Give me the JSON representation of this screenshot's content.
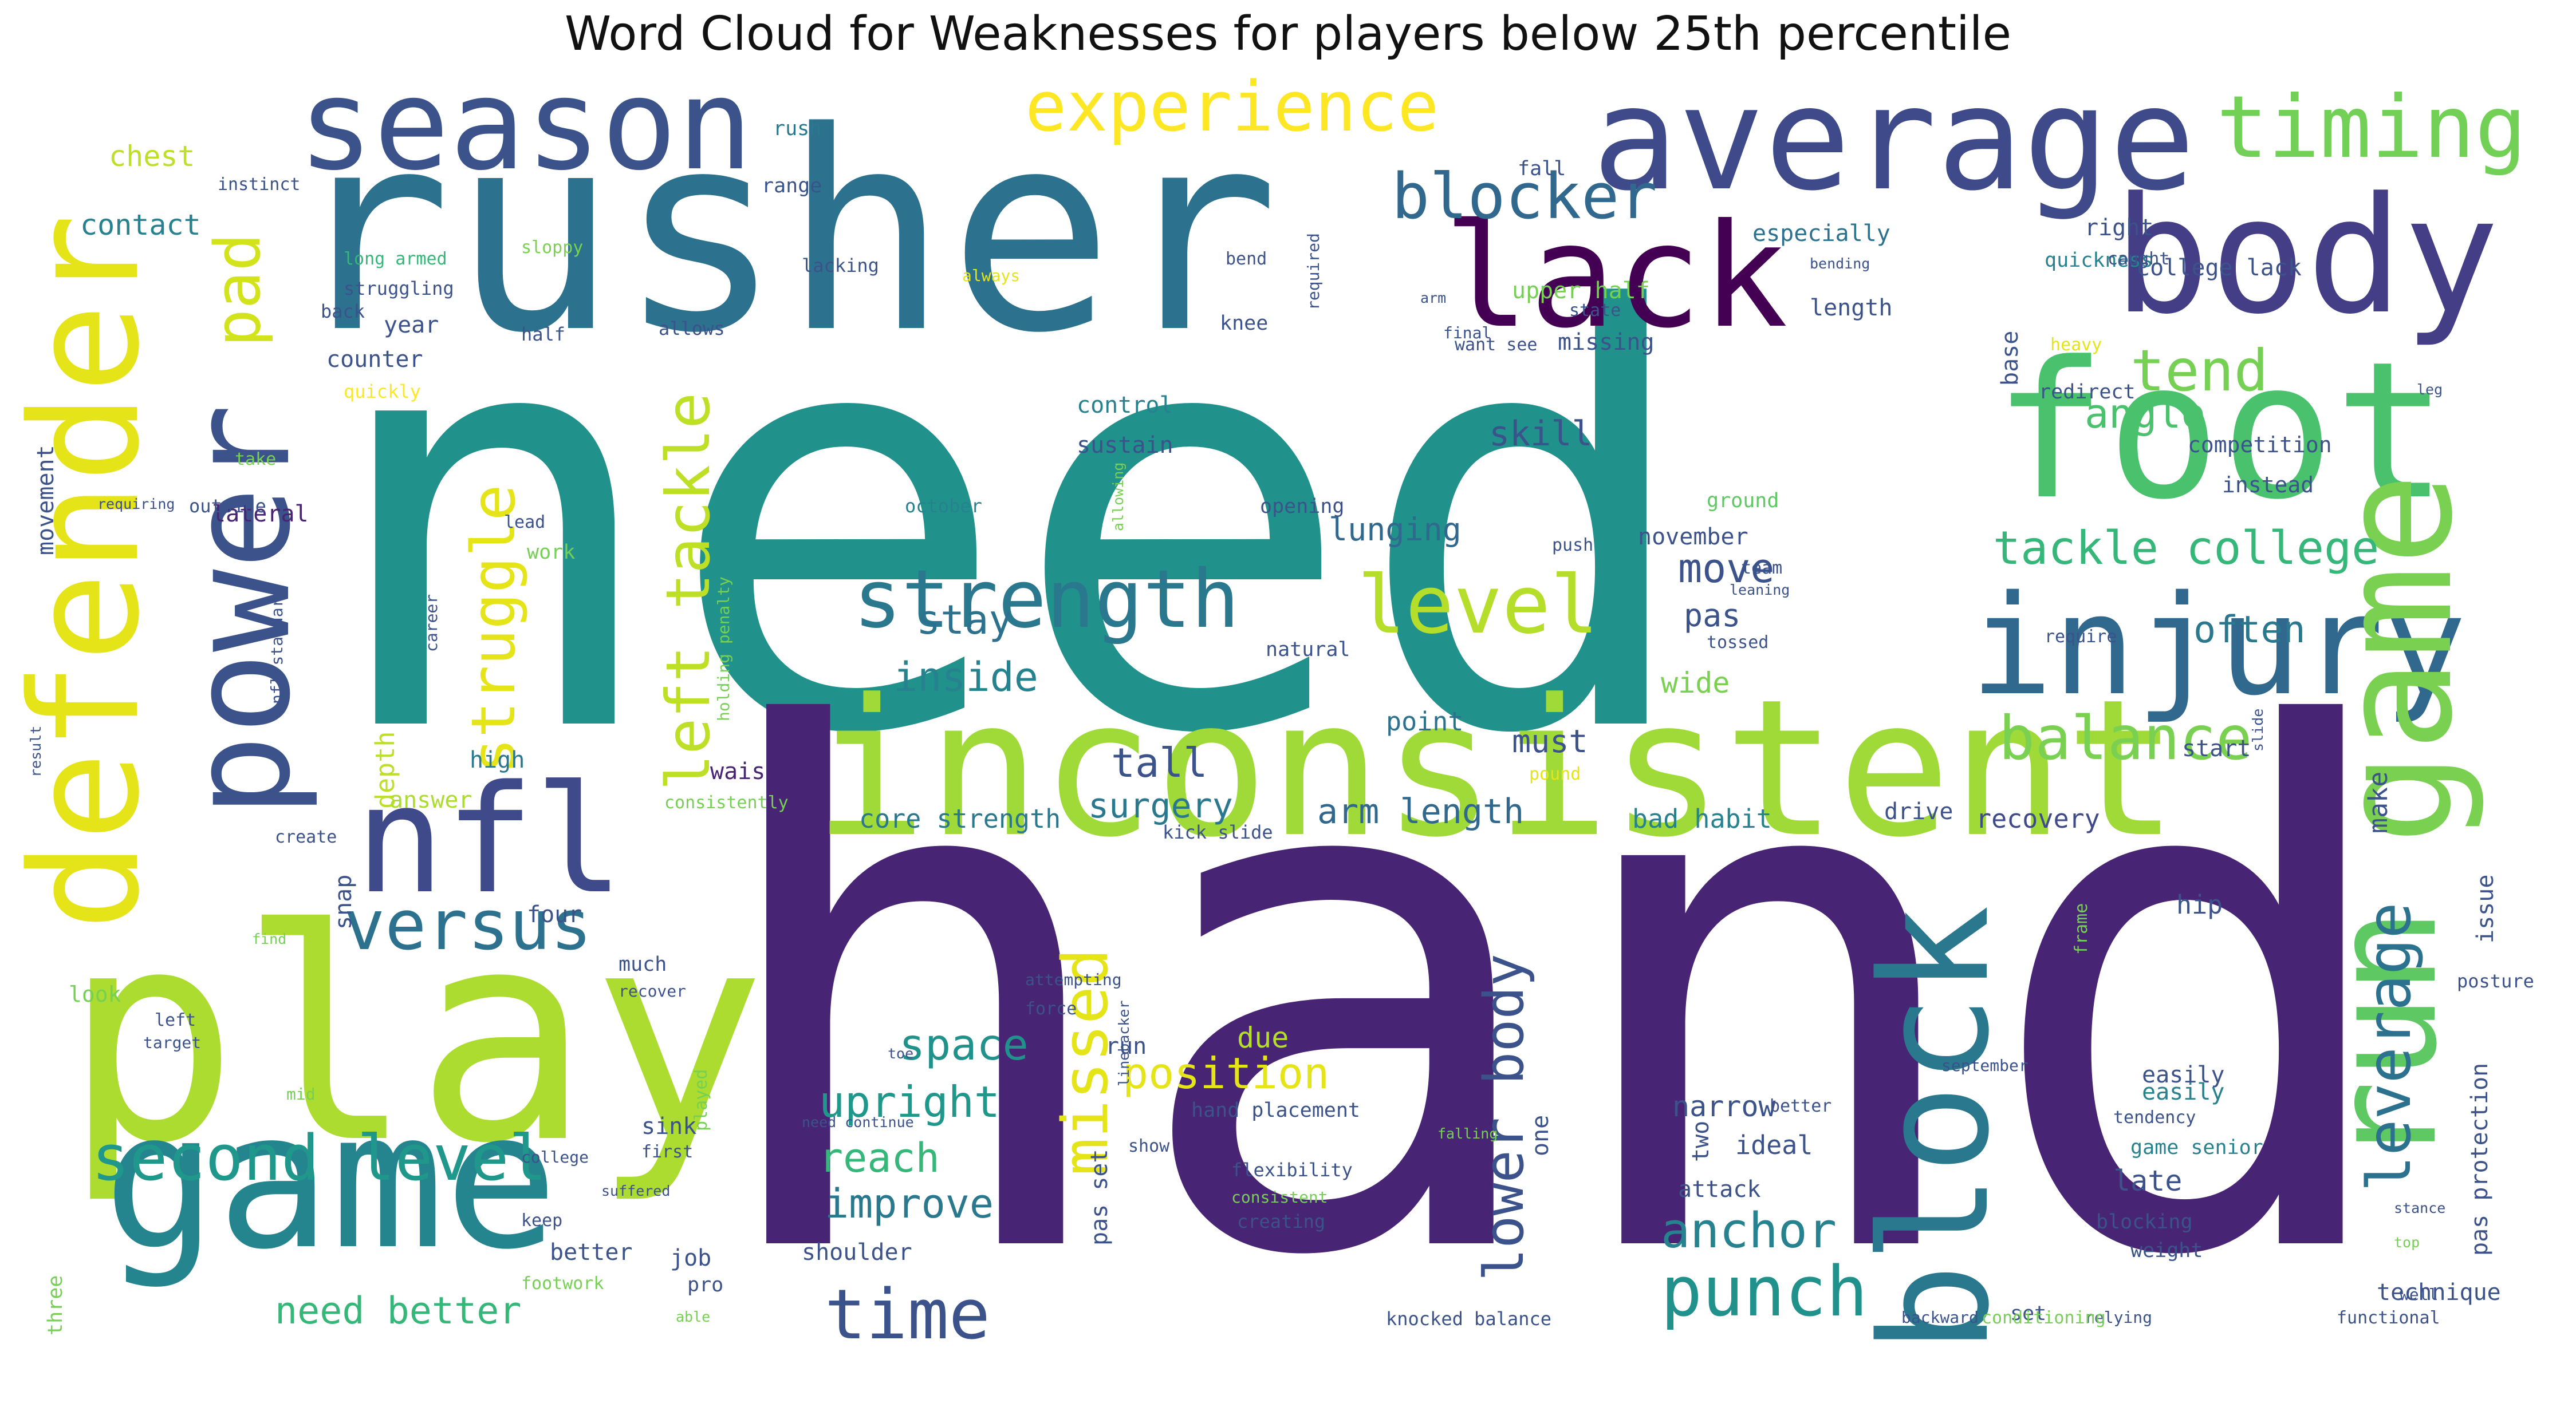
{
  "title": "Word Cloud for Weaknesses for players below 25th percentile",
  "chart_data": {
    "type": "wordcloud",
    "title": "Word Cloud for Weaknesses for players below 25th percentile",
    "colormap": "viridis",
    "words": [
      "need",
      "hand",
      "rusher",
      "inconsistent",
      "play",
      "game",
      "foot",
      "average",
      "body",
      "season",
      "defender",
      "power",
      "nfl",
      "lack",
      "injury",
      "block",
      "run",
      "game",
      "timing",
      "strength",
      "level",
      "versus",
      "experience",
      "left tackle",
      "struggle",
      "pad",
      "second level",
      "time",
      "missed",
      "punch",
      "balance",
      "leverage",
      "tackle college",
      "blocker",
      "tend",
      "lower body",
      "space",
      "upright",
      "reach",
      "improve",
      "position",
      "anchor",
      "stay",
      "inside",
      "lunging",
      "move",
      "angle",
      "often",
      "skill",
      "need better",
      "tall",
      "surgery",
      "arm length",
      "core strength",
      "bad habit",
      "recovery",
      "must",
      "point",
      "pas",
      "wide",
      "chest",
      "contact",
      "counter",
      "depth",
      "answer",
      "high",
      "lateral",
      "year",
      "waist",
      "due",
      "especially",
      "right",
      "college lack",
      "upper half",
      "base",
      "quickness",
      "range",
      "rush",
      "fall",
      "knee",
      "allows",
      "half",
      "sloppy",
      "struggling",
      "long armed",
      "instinct",
      "back",
      "quickly",
      "lacking",
      "always",
      "bend",
      "required",
      "arm",
      "final",
      "state",
      "bending",
      "caught",
      "heavy",
      "redirect",
      "competition",
      "instead",
      "leg",
      "take",
      "outside",
      "requiring",
      "movement",
      "lead",
      "work",
      "nfl standard",
      "career",
      "holding penalty",
      "allowing",
      "october",
      "opening",
      "ground",
      "push",
      "november",
      "team",
      "leaning",
      "require",
      "natural",
      "tossed",
      "start",
      "slide",
      "pound",
      "consistently",
      "create",
      "kick slide",
      "drive",
      "make",
      "hip",
      "issue",
      "posture",
      "frame",
      "four",
      "snap",
      "find",
      "much",
      "recover",
      "look",
      "left",
      "target",
      "mid",
      "attempting",
      "force",
      "linebacker",
      "toe",
      "september",
      "tendency",
      "easily",
      "game senior",
      "late",
      "pas protection",
      "narrow",
      "hand placement",
      "show",
      "falling",
      "played",
      "sink",
      "first",
      "suffered",
      "keep",
      "better",
      "job",
      "shoulder",
      "pas set",
      "flexibility",
      "consistent",
      "creating",
      "ideal",
      "attack",
      "two",
      "one",
      "blocking",
      "weight",
      "technique",
      "stance",
      "top",
      "well",
      "set",
      "relying",
      "functional",
      "conditioning",
      "backward",
      "knocked balance",
      "able",
      "footwork",
      "pro",
      "college",
      "three",
      "need continue",
      "result",
      "control",
      "sustain",
      "run",
      "better",
      "easily",
      "want see",
      "missing",
      "length"
    ]
  }
}
